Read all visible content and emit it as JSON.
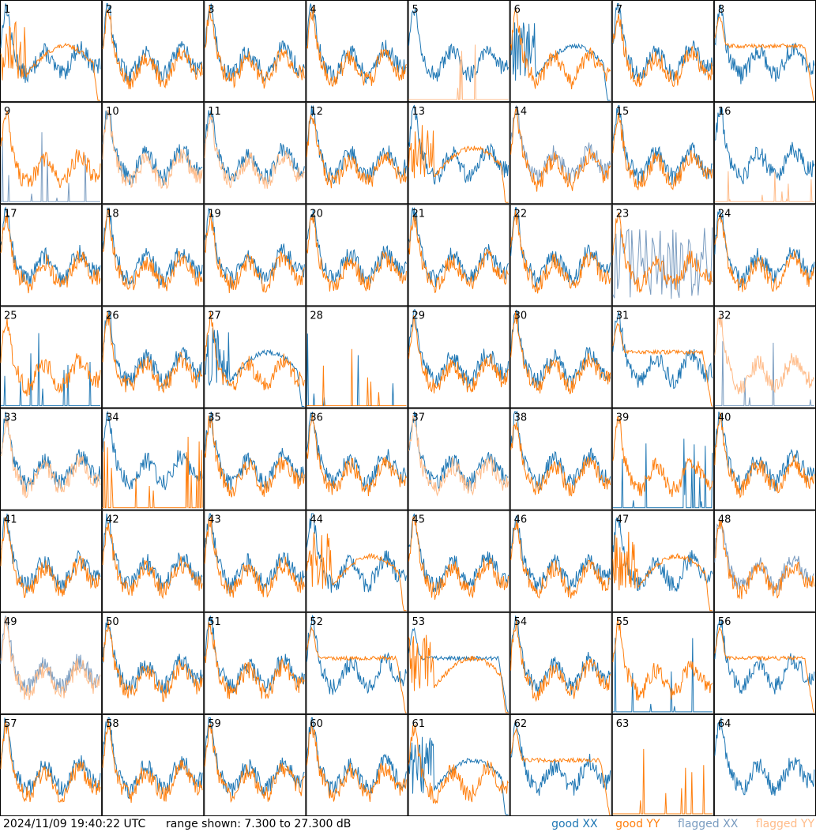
{
  "footer": {
    "timestamp": "2024/11/09 19:40:22 UTC",
    "range": "range shown: 7.300 to 27.300 dB"
  },
  "legend": [
    {
      "label": "good XX",
      "color": "#1f77b4"
    },
    {
      "label": "good YY",
      "color": "#ff7f0e"
    },
    {
      "label": "flagged XX",
      "color": "#7a9cc0"
    },
    {
      "label": "flagged YY",
      "color": "#ffbb88"
    }
  ],
  "chart_data": {
    "type": "line",
    "grid": {
      "rows": 8,
      "cols": 8
    },
    "ylim": [
      7.3,
      27.3
    ],
    "yunit": "dB",
    "panels": [
      {
        "label": "1",
        "xx": "good",
        "yy": "good",
        "xx_shape": "normal",
        "yy_shape": "weird"
      },
      {
        "label": "2",
        "xx": "good",
        "yy": "good",
        "xx_shape": "normal",
        "yy_shape": "normal"
      },
      {
        "label": "3",
        "xx": "good",
        "yy": "good",
        "xx_shape": "normal",
        "yy_shape": "normal"
      },
      {
        "label": "4",
        "xx": "good",
        "yy": "good",
        "xx_shape": "normal",
        "yy_shape": "normal"
      },
      {
        "label": "5",
        "xx": "good",
        "yy": "flagged",
        "xx_shape": "normal",
        "yy_shape": "spikes"
      },
      {
        "label": "6",
        "xx": "good",
        "yy": "good",
        "xx_shape": "weird",
        "yy_shape": "normal"
      },
      {
        "label": "7",
        "xx": "good",
        "yy": "good",
        "xx_shape": "normal",
        "yy_shape": "normal"
      },
      {
        "label": "8",
        "xx": "good",
        "yy": "good",
        "xx_shape": "normal",
        "yy_shape": "flat"
      },
      {
        "label": "9",
        "xx": "flagged",
        "yy": "good",
        "xx_shape": "spikes",
        "yy_shape": "normal"
      },
      {
        "label": "10",
        "xx": "good",
        "yy": "flagged",
        "xx_shape": "normal",
        "yy_shape": "normal"
      },
      {
        "label": "11",
        "xx": "good",
        "yy": "flagged",
        "xx_shape": "normal",
        "yy_shape": "normal"
      },
      {
        "label": "12",
        "xx": "good",
        "yy": "good",
        "xx_shape": "normal",
        "yy_shape": "normal"
      },
      {
        "label": "13",
        "xx": "good",
        "yy": "good",
        "xx_shape": "normal",
        "yy_shape": "weird"
      },
      {
        "label": "14",
        "xx": "flagged",
        "yy": "good",
        "xx_shape": "normal",
        "yy_shape": "normal"
      },
      {
        "label": "15",
        "xx": "good",
        "yy": "good",
        "xx_shape": "normal",
        "yy_shape": "normal"
      },
      {
        "label": "16",
        "xx": "good",
        "yy": "flagged",
        "xx_shape": "normal",
        "yy_shape": "spikes"
      },
      {
        "label": "17",
        "xx": "good",
        "yy": "good",
        "xx_shape": "normal",
        "yy_shape": "normal"
      },
      {
        "label": "18",
        "xx": "good",
        "yy": "good",
        "xx_shape": "normal",
        "yy_shape": "normal"
      },
      {
        "label": "19",
        "xx": "good",
        "yy": "good",
        "xx_shape": "normal",
        "yy_shape": "normal"
      },
      {
        "label": "20",
        "xx": "good",
        "yy": "good",
        "xx_shape": "normal",
        "yy_shape": "normal"
      },
      {
        "label": "21",
        "xx": "good",
        "yy": "good",
        "xx_shape": "normal",
        "yy_shape": "normal"
      },
      {
        "label": "22",
        "xx": "good",
        "yy": "good",
        "xx_shape": "normal",
        "yy_shape": "normal"
      },
      {
        "label": "23",
        "xx": "flagged",
        "yy": "good",
        "xx_shape": "noisy",
        "yy_shape": "normal"
      },
      {
        "label": "24",
        "xx": "good",
        "yy": "good",
        "xx_shape": "normal",
        "yy_shape": "normal"
      },
      {
        "label": "25",
        "xx": "good",
        "yy": "good",
        "xx_shape": "spikes",
        "yy_shape": "normal"
      },
      {
        "label": "26",
        "xx": "good",
        "yy": "good",
        "xx_shape": "normal",
        "yy_shape": "normal"
      },
      {
        "label": "27",
        "xx": "good",
        "yy": "good",
        "xx_shape": "weird",
        "yy_shape": "normal"
      },
      {
        "label": "28",
        "xx": "good",
        "yy": "good",
        "xx_shape": "spikes",
        "yy_shape": "spikes"
      },
      {
        "label": "29",
        "xx": "good",
        "yy": "good",
        "xx_shape": "normal",
        "yy_shape": "normal"
      },
      {
        "label": "30",
        "xx": "good",
        "yy": "good",
        "xx_shape": "normal",
        "yy_shape": "normal"
      },
      {
        "label": "31",
        "xx": "good",
        "yy": "good",
        "xx_shape": "normal",
        "yy_shape": "flat"
      },
      {
        "label": "32",
        "xx": "flagged",
        "yy": "flagged",
        "xx_shape": "spikes",
        "yy_shape": "normal"
      },
      {
        "label": "33",
        "xx": "good",
        "yy": "flagged",
        "xx_shape": "normal",
        "yy_shape": "normal"
      },
      {
        "label": "34",
        "xx": "good",
        "yy": "good",
        "xx_shape": "normal",
        "yy_shape": "spikes"
      },
      {
        "label": "35",
        "xx": "good",
        "yy": "good",
        "xx_shape": "normal",
        "yy_shape": "normal"
      },
      {
        "label": "36",
        "xx": "good",
        "yy": "good",
        "xx_shape": "normal",
        "yy_shape": "normal"
      },
      {
        "label": "37",
        "xx": "good",
        "yy": "flagged",
        "xx_shape": "normal",
        "yy_shape": "normal"
      },
      {
        "label": "38",
        "xx": "good",
        "yy": "good",
        "xx_shape": "normal",
        "yy_shape": "normal"
      },
      {
        "label": "39",
        "xx": "good",
        "yy": "good",
        "xx_shape": "spikes",
        "yy_shape": "normal"
      },
      {
        "label": "40",
        "xx": "good",
        "yy": "good",
        "xx_shape": "normal",
        "yy_shape": "normal"
      },
      {
        "label": "41",
        "xx": "good",
        "yy": "good",
        "xx_shape": "normal",
        "yy_shape": "normal"
      },
      {
        "label": "42",
        "xx": "good",
        "yy": "good",
        "xx_shape": "normal",
        "yy_shape": "normal"
      },
      {
        "label": "43",
        "xx": "good",
        "yy": "good",
        "xx_shape": "normal",
        "yy_shape": "normal"
      },
      {
        "label": "44",
        "xx": "good",
        "yy": "good",
        "xx_shape": "normal",
        "yy_shape": "weird"
      },
      {
        "label": "45",
        "xx": "good",
        "yy": "good",
        "xx_shape": "normal",
        "yy_shape": "normal"
      },
      {
        "label": "46",
        "xx": "good",
        "yy": "good",
        "xx_shape": "normal",
        "yy_shape": "normal"
      },
      {
        "label": "47",
        "xx": "good",
        "yy": "good",
        "xx_shape": "normal",
        "yy_shape": "weird"
      },
      {
        "label": "48",
        "xx": "flagged",
        "yy": "good",
        "xx_shape": "normal",
        "yy_shape": "normal"
      },
      {
        "label": "49",
        "xx": "flagged",
        "yy": "flagged",
        "xx_shape": "normal",
        "yy_shape": "normal"
      },
      {
        "label": "50",
        "xx": "good",
        "yy": "good",
        "xx_shape": "normal",
        "yy_shape": "normal"
      },
      {
        "label": "51",
        "xx": "good",
        "yy": "good",
        "xx_shape": "normal",
        "yy_shape": "normal"
      },
      {
        "label": "52",
        "xx": "good",
        "yy": "good",
        "xx_shape": "normal",
        "yy_shape": "flat"
      },
      {
        "label": "53",
        "xx": "good",
        "yy": "good",
        "xx_shape": "flat",
        "yy_shape": "weird"
      },
      {
        "label": "54",
        "xx": "good",
        "yy": "good",
        "xx_shape": "normal",
        "yy_shape": "normal"
      },
      {
        "label": "55",
        "xx": "good",
        "yy": "good",
        "xx_shape": "spikes",
        "yy_shape": "normal"
      },
      {
        "label": "56",
        "xx": "good",
        "yy": "good",
        "xx_shape": "normal",
        "yy_shape": "flat"
      },
      {
        "label": "57",
        "xx": "good",
        "yy": "good",
        "xx_shape": "normal",
        "yy_shape": "normal"
      },
      {
        "label": "58",
        "xx": "good",
        "yy": "good",
        "xx_shape": "normal",
        "yy_shape": "normal"
      },
      {
        "label": "59",
        "xx": "good",
        "yy": "good",
        "xx_shape": "normal",
        "yy_shape": "normal"
      },
      {
        "label": "60",
        "xx": "good",
        "yy": "good",
        "xx_shape": "normal",
        "yy_shape": "normal"
      },
      {
        "label": "61",
        "xx": "good",
        "yy": "good",
        "xx_shape": "weird",
        "yy_shape": "normal"
      },
      {
        "label": "62",
        "xx": "good",
        "yy": "good",
        "xx_shape": "normal",
        "yy_shape": "flat"
      },
      {
        "label": "63",
        "xx": "good",
        "yy": "good",
        "xx_shape": "none",
        "yy_shape": "spikes"
      },
      {
        "label": "64",
        "xx": "good",
        "yy": "good",
        "xx_shape": "normal",
        "yy_shape": "none"
      }
    ]
  }
}
